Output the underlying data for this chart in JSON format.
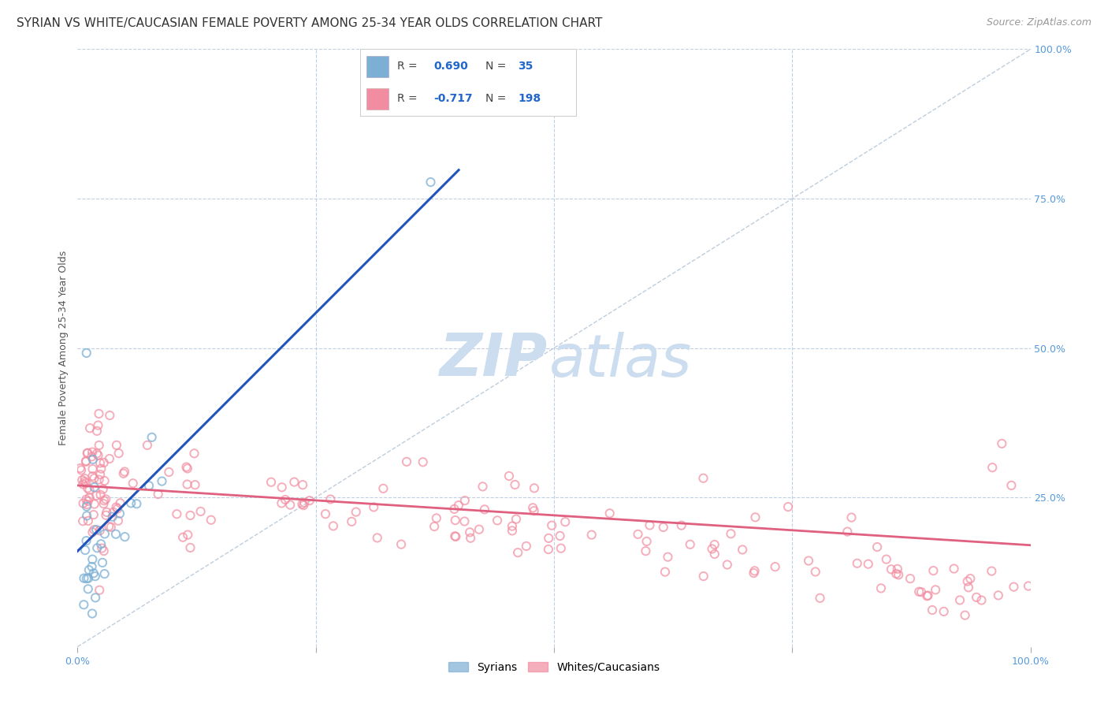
{
  "title": "SYRIAN VS WHITE/CAUCASIAN FEMALE POVERTY AMONG 25-34 YEAR OLDS CORRELATION CHART",
  "source": "Source: ZipAtlas.com",
  "ylabel": "Female Poverty Among 25-34 Year Olds",
  "xlim": [
    0.0,
    1.0
  ],
  "ylim": [
    0.0,
    1.0
  ],
  "ytick_labels": [
    "25.0%",
    "50.0%",
    "75.0%",
    "100.0%"
  ],
  "ytick_vals": [
    0.25,
    0.5,
    0.75,
    1.0
  ],
  "xtick_labels_edge": [
    "0.0%",
    "100.0%"
  ],
  "xtick_vals_edge": [
    0.0,
    1.0
  ],
  "xtick_vals_minor": [
    0.25,
    0.5,
    0.75
  ],
  "syrian_color": "#7bafd4",
  "white_color": "#f28ca0",
  "syrian_line_color": "#2255bb",
  "white_line_color": "#e06080",
  "diagonal_color": "#b8c8d8",
  "watermark_zip_color": "#ccddf0",
  "watermark_atlas_color": "#ccddf0",
  "syrian_R": 0.69,
  "syrian_N": 35,
  "white_R": -0.717,
  "white_N": 198,
  "title_fontsize": 11,
  "axis_label_fontsize": 9,
  "tick_fontsize": 9,
  "source_fontsize": 9,
  "background_color": "#ffffff",
  "grid_color": "#c0d0e0",
  "right_tick_color": "#5599dd",
  "bottom_tick_color": "#5599dd",
  "legend_box_color": "#e8f0f8",
  "legend_R_color": "#333333",
  "legend_N_color": "#2266cc"
}
